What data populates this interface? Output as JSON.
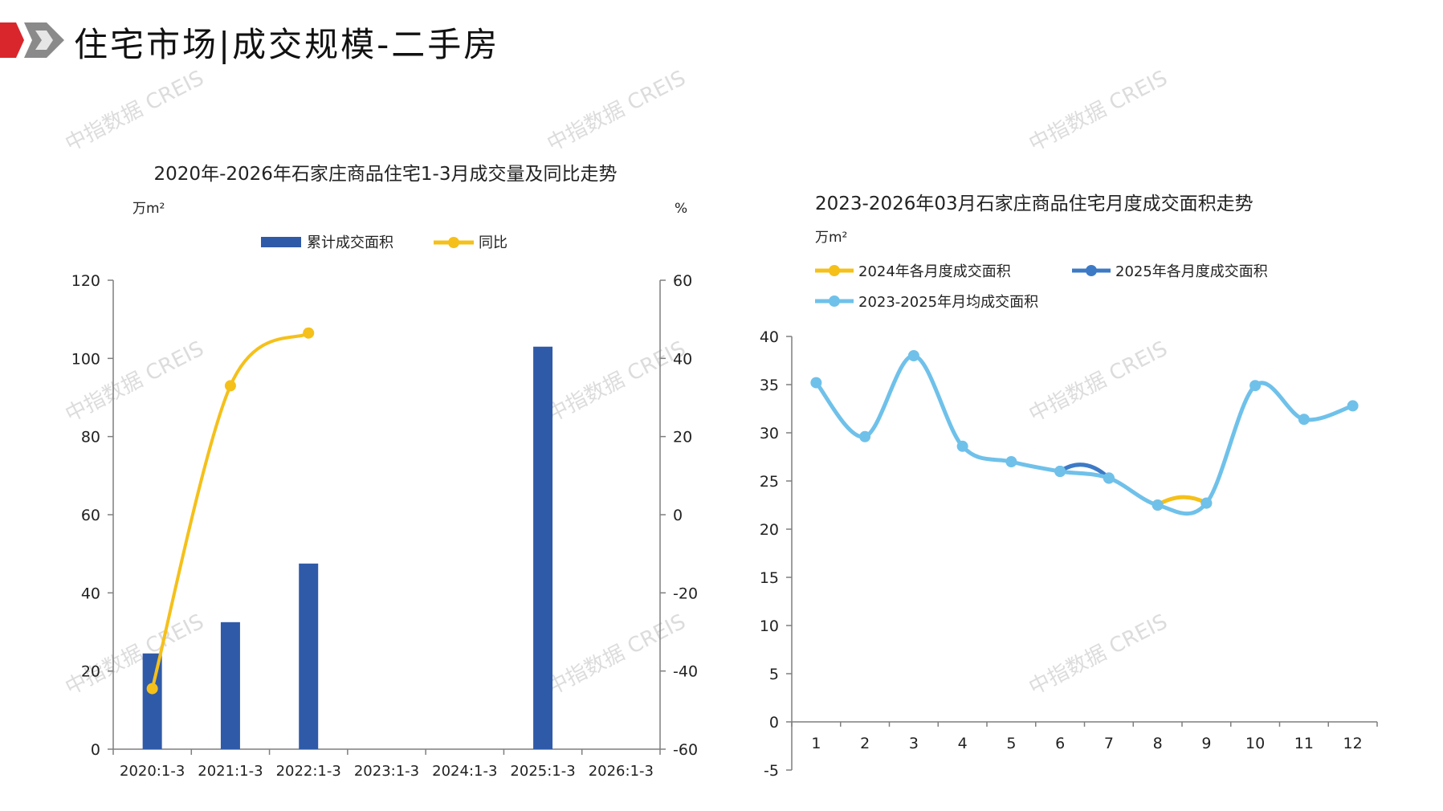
{
  "header": {
    "title": "住宅市场|成交规模-二手房"
  },
  "watermark": "中指数据 CREIS",
  "colors": {
    "brand_red": "#d9262c",
    "brand_gray": "#8a8a8a",
    "bar": "#2f5aa8",
    "yoy": "#f5c01a",
    "y2024": "#f5c01a",
    "y2025": "#3d7ac6",
    "avg": "#6fc1ea",
    "axis": "#7f7f7f"
  },
  "chart_data": [
    {
      "type": "bar",
      "title": "2020年-2026年石家庄商品住宅1-3月成交量及同比走势",
      "ylabel_left": "万m²",
      "ylabel_right": "%",
      "categories": [
        "2020:1-3",
        "2021:1-3",
        "2022:1-3",
        "2023:1-3",
        "2024:1-3",
        "2025:1-3",
        "2026:1-3"
      ],
      "series": [
        {
          "name": "累计成交面积",
          "axis": "left",
          "kind": "bar",
          "values": [
            24.5,
            32.5,
            47.5,
            null,
            null,
            103,
            null
          ]
        },
        {
          "name": "同比",
          "axis": "right",
          "kind": "line",
          "values": [
            -44.5,
            33,
            46.5,
            null,
            null,
            null,
            null
          ]
        }
      ],
      "ylim_left": [
        0,
        120
      ],
      "yticks_left": [
        0,
        20,
        40,
        60,
        80,
        100,
        120
      ],
      "ylim_right": [
        -60,
        60
      ],
      "yticks_right": [
        -60,
        -40,
        -20,
        0,
        20,
        40,
        60
      ],
      "legend": "top-center",
      "grid": false
    },
    {
      "type": "line",
      "title": "2023-2026年03月石家庄商品住宅月度成交面积走势",
      "ylabel": "万m²",
      "x": [
        "1",
        "2",
        "3",
        "4",
        "5",
        "6",
        "7",
        "8",
        "9",
        "10",
        "11",
        "12"
      ],
      "series": [
        {
          "name": "2024年各月度成交面积",
          "values": [
            null,
            null,
            null,
            null,
            null,
            null,
            null,
            22.5,
            22.7,
            null,
            null,
            null
          ]
        },
        {
          "name": "2025年各月度成交面积",
          "values": [
            null,
            null,
            null,
            null,
            null,
            26.0,
            25.3,
            null,
            null,
            null,
            null,
            null
          ]
        },
        {
          "name": "2023-2025年月均成交面积",
          "values": [
            35.2,
            29.6,
            38.0,
            28.6,
            27.0,
            26.0,
            25.3,
            22.5,
            22.7,
            34.9,
            31.4,
            32.8
          ]
        }
      ],
      "ylim": [
        -5,
        40
      ],
      "yticks": [
        -5,
        0,
        5,
        10,
        15,
        20,
        25,
        30,
        35,
        40
      ],
      "legend": "top-left",
      "grid": false
    }
  ]
}
